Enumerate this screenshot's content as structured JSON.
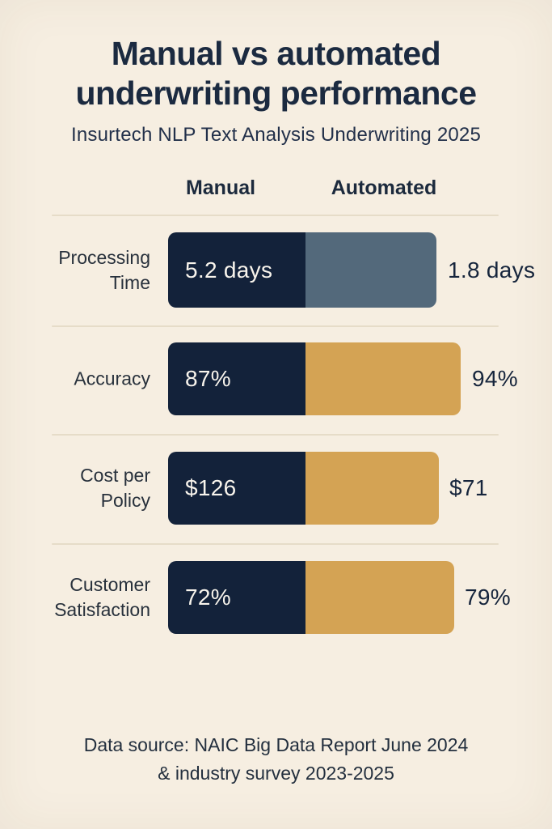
{
  "page": {
    "title": "Manual vs automated underwriting performance",
    "subtitle": "Insurtech NLP Text Analysis Underwriting 2025",
    "footer_line1": "Data source: NAIC Big Data Report June 2024",
    "footer_line2": "& industry survey 2023-2025"
  },
  "columns": {
    "manual": "Manual",
    "automated": "Automated"
  },
  "rows": [
    {
      "label_line1": "Processing",
      "label_line2": "Time",
      "manual_label": "5.2 days",
      "automated_label": "1.8 days"
    },
    {
      "label_line1": "Accuracy",
      "label_line2": "",
      "manual_label": "87%",
      "automated_label": "94%"
    },
    {
      "label_line1": "Cost per",
      "label_line2": "Policy",
      "manual_label": "$126",
      "automated_label": "$71"
    },
    {
      "label_line1": "Customer",
      "label_line2": "Satisfaction",
      "manual_label": "72%",
      "automated_label": "79%"
    }
  ],
  "colors": {
    "background": "#f6eee1",
    "manual_bar": "#13223a",
    "automated_bar_neutral": "#53697b",
    "automated_bar_accent": "#d4a354",
    "divider": "#e6dcc8",
    "text_dark": "#1b2a40",
    "bar_text": "#f8f4ec"
  },
  "chart_data": {
    "type": "bar",
    "title": "Manual vs automated underwriting performance",
    "subtitle": "Insurtech NLP Text Analysis Underwriting 2025",
    "categories": [
      "Processing Time",
      "Accuracy",
      "Cost per Policy",
      "Customer Satisfaction"
    ],
    "series": [
      {
        "name": "Manual",
        "values": [
          5.2,
          87,
          126,
          72
        ],
        "display_labels": [
          "5.2 days",
          "87%",
          "$126",
          "72%"
        ],
        "color": "#13223a"
      },
      {
        "name": "Automated",
        "values": [
          1.8,
          94,
          71,
          79
        ],
        "display_labels": [
          "1.8 days",
          "94%",
          "$71",
          "79%"
        ],
        "colors": [
          "#53697b",
          "#d4a354",
          "#d4a354",
          "#d4a354"
        ]
      }
    ],
    "units_per_category": [
      "days",
      "percent",
      "USD",
      "percent"
    ],
    "orientation": "horizontal",
    "grid": false,
    "legend_position": "top",
    "value_label_placement": [
      "inside-left of manual segment",
      "right of automated segment"
    ],
    "source": "Data source: NAIC Big Data Report June 2024 & industry survey 2023-2025"
  }
}
